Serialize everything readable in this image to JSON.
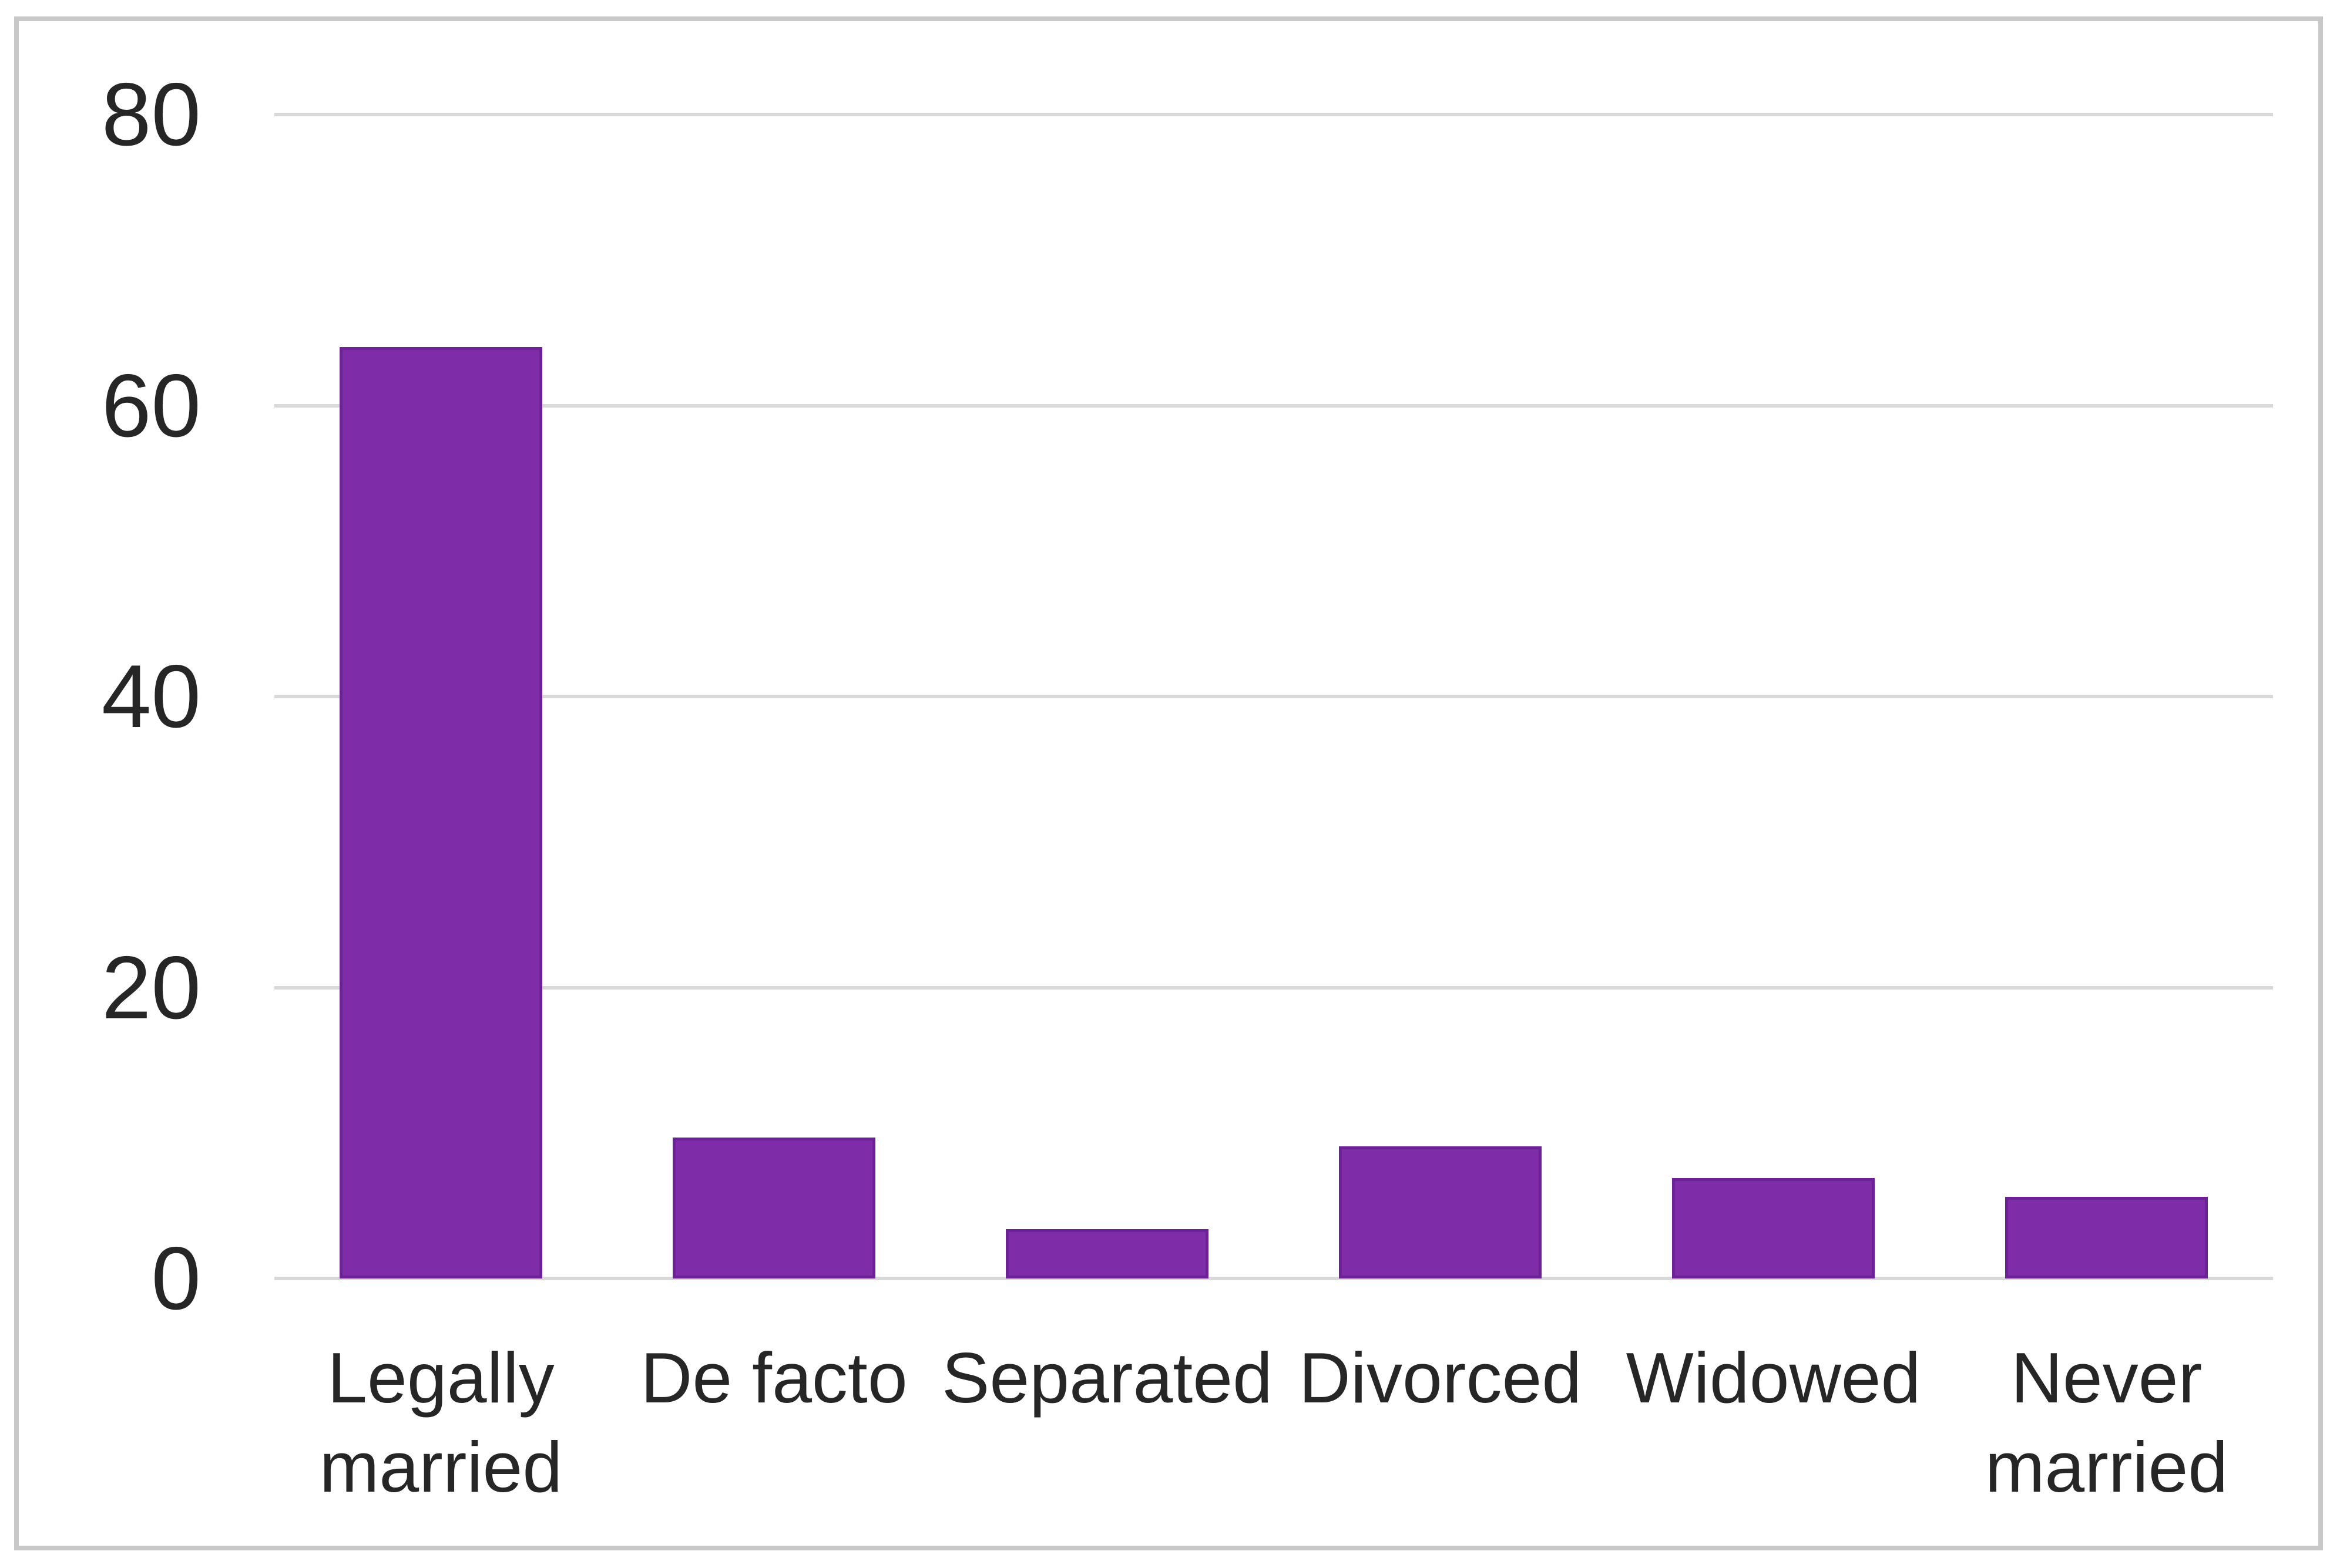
{
  "chart_data": {
    "type": "bar",
    "title": "",
    "xlabel": "",
    "ylabel": "",
    "categories": [
      "Legally married",
      "De facto",
      "Separated",
      "Divorced",
      "Widowed",
      "Never married"
    ],
    "values": [
      64,
      9.7,
      3.4,
      9.1,
      6.9,
      5.6
    ],
    "ylim": [
      0,
      80
    ],
    "yticks": [
      80,
      60,
      40,
      20,
      0
    ],
    "grid": true,
    "legend": false,
    "colors": {
      "bar_fill": "#7e2ca7",
      "bar_border": "#6c2197",
      "gridline": "#d9d9d9",
      "axis_text": "#262626",
      "frame_border": "#c8c8c8",
      "background": "#ffffff"
    }
  }
}
